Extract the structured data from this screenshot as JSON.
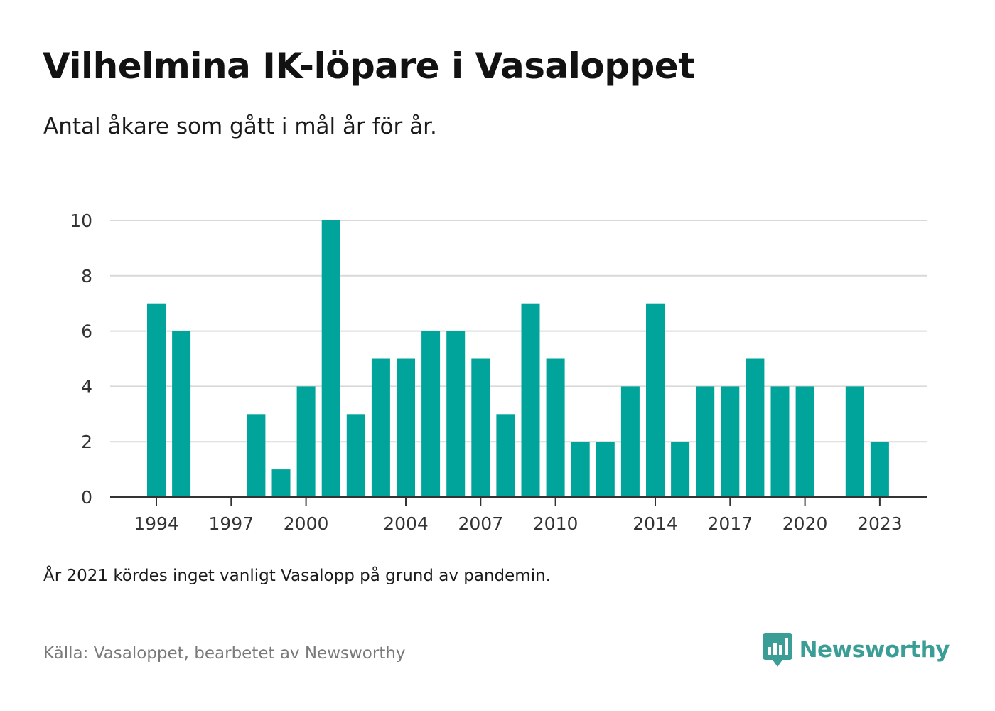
{
  "title": "Vilhelmina IK-löpare i Vasaloppet",
  "subtitle": "Antal åkare som gått i mål år för år.",
  "note": "År 2021 kördes inget vanligt Vasalopp på grund av pandemin.",
  "source": "Källa: Vasaloppet, bearbetet av Newsworthy",
  "brand": {
    "name": "Newsworthy",
    "icon": "newsworthy-logo-icon",
    "color": "#3a9e96"
  },
  "colors": {
    "bar": "#00a49a",
    "grid": "#d9d9d9",
    "axis": "#333333"
  },
  "chart_data": {
    "type": "bar",
    "title": "Vilhelmina IK-löpare i Vasaloppet",
    "xlabel": "",
    "ylabel": "",
    "ylim": [
      0,
      10
    ],
    "yticks": [
      0,
      2,
      4,
      6,
      8,
      10
    ],
    "grid": true,
    "legend": "none",
    "categories": [
      1994,
      1995,
      1996,
      1997,
      1998,
      1999,
      2000,
      2001,
      2002,
      2003,
      2004,
      2005,
      2006,
      2007,
      2008,
      2009,
      2010,
      2011,
      2012,
      2013,
      2014,
      2015,
      2016,
      2017,
      2018,
      2019,
      2020,
      2021,
      2022,
      2023
    ],
    "values": [
      7,
      6,
      0,
      0,
      3,
      1,
      4,
      10,
      3,
      5,
      5,
      6,
      6,
      5,
      3,
      7,
      5,
      2,
      2,
      4,
      7,
      2,
      4,
      4,
      5,
      4,
      4,
      0,
      4,
      2
    ],
    "xtick_labels": [
      "1994",
      "1997",
      "2000",
      "2004",
      "2007",
      "2010",
      "2014",
      "2017",
      "2020",
      "2023"
    ]
  }
}
